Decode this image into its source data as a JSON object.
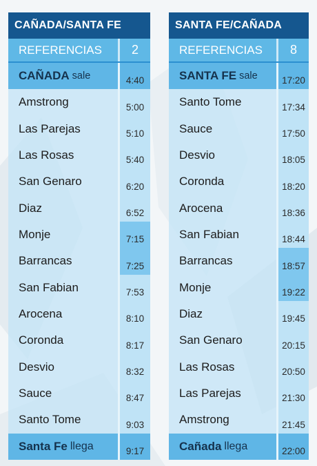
{
  "left": {
    "title": "CAÑADA/SANTA FE",
    "ref_label": "REFERENCIAS",
    "ref_number": "2",
    "departure": {
      "name": "CAÑADA",
      "suffix": "sale",
      "time": "4:40"
    },
    "stops": [
      {
        "name": "Amstrong",
        "time": "5:00",
        "highlight": false
      },
      {
        "name": "Las Parejas",
        "time": "5:10",
        "highlight": false
      },
      {
        "name": "Las Rosas",
        "time": "5:40",
        "highlight": false
      },
      {
        "name": "San Genaro",
        "time": "6:20",
        "highlight": false
      },
      {
        "name": "Diaz",
        "time": "6:52",
        "highlight": false
      },
      {
        "name": "Monje",
        "time": "7:15",
        "highlight": true
      },
      {
        "name": "Barrancas",
        "time": "7:25",
        "highlight": true
      },
      {
        "name": "San Fabian",
        "time": "7:53",
        "highlight": false
      },
      {
        "name": "Arocena",
        "time": "8:10",
        "highlight": false
      },
      {
        "name": "Coronda",
        "time": "8:17",
        "highlight": false
      },
      {
        "name": "Desvio",
        "time": "8:32",
        "highlight": false
      },
      {
        "name": "Sauce",
        "time": "8:47",
        "highlight": false
      },
      {
        "name": "Santo Tome",
        "time": "9:03",
        "highlight": false
      }
    ],
    "arrival": {
      "name": "Santa Fe",
      "suffix": "llega",
      "time": "9:17"
    }
  },
  "right": {
    "title": "SANTA FE/CAÑADA",
    "ref_label": "REFERENCIAS",
    "ref_number": "8",
    "departure": {
      "name": "SANTA FE",
      "suffix": "sale",
      "time": "17:20"
    },
    "stops": [
      {
        "name": "Santo Tome",
        "time": "17:34",
        "highlight": false
      },
      {
        "name": "Sauce",
        "time": "17:50",
        "highlight": false
      },
      {
        "name": "Desvio",
        "time": "18:05",
        "highlight": false
      },
      {
        "name": "Coronda",
        "time": "18:20",
        "highlight": false
      },
      {
        "name": "Arocena",
        "time": "18:36",
        "highlight": false
      },
      {
        "name": "San Fabian",
        "time": "18:44",
        "highlight": false
      },
      {
        "name": "Barrancas",
        "time": "18:57",
        "highlight": true
      },
      {
        "name": "Monje",
        "time": "19:22",
        "highlight": true
      },
      {
        "name": "Diaz",
        "time": "19:45",
        "highlight": false
      },
      {
        "name": "San Genaro",
        "time": "20:15",
        "highlight": false
      },
      {
        "name": "Las Rosas",
        "time": "20:50",
        "highlight": false
      },
      {
        "name": "Las Parejas",
        "time": "21:30",
        "highlight": false
      },
      {
        "name": "Amstrong",
        "time": "21:45",
        "highlight": false
      }
    ],
    "arrival": {
      "name": "Cañada",
      "suffix": "llega",
      "time": "22:00"
    }
  },
  "colors": {
    "header": "#15578f",
    "reference_bar": "#5fb8e6",
    "endpoint_row": "#5fb6e6",
    "stop_cell": "#c4e4f6",
    "highlight_time": "#7fc7ee"
  }
}
